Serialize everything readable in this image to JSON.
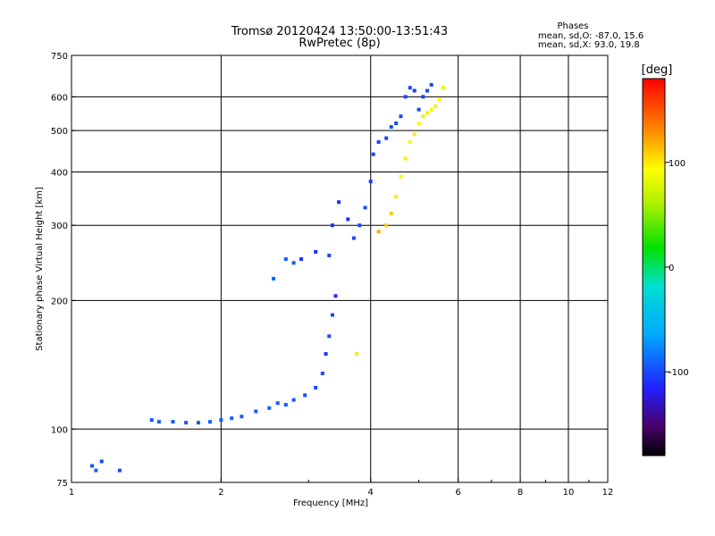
{
  "header": {
    "title_line1": "Tromsø 20120424 13:50:00-13:51:43",
    "title_line2": "RwPretec (8p)"
  },
  "phase_stats": {
    "heading": "Phases",
    "line_o": "mean, sd,O: -87.0, 15.6",
    "line_x": "mean, sd,X:  93.0, 19.8"
  },
  "chart_data": {
    "type": "scatter",
    "title": "Tromsø 20120424 13:50:00-13:51:43",
    "subtitle": "RwPretec (8p)",
    "xlabel": "Frequency [MHz]",
    "ylabel": "Stationary phase Virtual Height [km]",
    "x_scale": "log",
    "y_scale": "log",
    "xlim": [
      1,
      12
    ],
    "ylim": [
      75,
      750
    ],
    "x_ticks": [
      1,
      2,
      4,
      6,
      8,
      10,
      12
    ],
    "y_ticks": [
      75,
      100,
      200,
      300,
      400,
      500,
      600,
      750
    ],
    "grid_x": [
      2,
      4,
      6,
      8,
      10
    ],
    "grid_y": [
      100,
      200,
      300,
      400,
      500,
      600
    ],
    "grid": true,
    "colorbar": {
      "label": "[deg]",
      "range": [
        -180,
        180
      ],
      "ticks": [
        100,
        0,
        -100
      ],
      "colormap": "rainbow"
    },
    "series": [
      {
        "mode": "O",
        "mean_phase_deg": -87.0,
        "points": [
          [
            1.1,
            82,
            -95
          ],
          [
            1.12,
            80,
            -90
          ],
          [
            1.15,
            84,
            -100
          ],
          [
            1.25,
            80,
            -100
          ],
          [
            1.45,
            105,
            -95
          ],
          [
            1.5,
            104,
            -92
          ],
          [
            1.6,
            104,
            -95
          ],
          [
            1.7,
            103.5,
            -95
          ],
          [
            1.8,
            103.5,
            -95
          ],
          [
            1.9,
            104,
            -90
          ],
          [
            2.0,
            105,
            -92
          ],
          [
            2.1,
            106,
            -90
          ],
          [
            2.2,
            107,
            -95
          ],
          [
            2.35,
            110,
            -95
          ],
          [
            2.5,
            112,
            -90
          ],
          [
            2.6,
            115,
            -95
          ],
          [
            2.7,
            114,
            -92
          ],
          [
            2.8,
            117,
            -95
          ],
          [
            2.95,
            120,
            -100
          ],
          [
            3.1,
            125,
            -100
          ],
          [
            3.2,
            135,
            -100
          ],
          [
            3.25,
            150,
            -110
          ],
          [
            3.3,
            165,
            -100
          ],
          [
            3.35,
            185,
            -100
          ],
          [
            3.4,
            205,
            -110
          ],
          [
            2.55,
            225,
            -90
          ],
          [
            2.7,
            250,
            -90
          ],
          [
            2.8,
            245,
            -95
          ],
          [
            2.9,
            250,
            -110
          ],
          [
            3.1,
            260,
            -110
          ],
          [
            3.3,
            255,
            -100
          ],
          [
            3.35,
            300,
            -110
          ],
          [
            3.45,
            340,
            -110
          ],
          [
            3.6,
            310,
            -110
          ],
          [
            3.7,
            280,
            -100
          ],
          [
            3.8,
            300,
            -100
          ],
          [
            3.9,
            330,
            -100
          ],
          [
            4.0,
            380,
            -105
          ],
          [
            4.05,
            440,
            -100
          ],
          [
            4.15,
            470,
            -100
          ],
          [
            4.3,
            480,
            -100
          ],
          [
            4.4,
            510,
            -100
          ],
          [
            4.5,
            520,
            -100
          ],
          [
            4.6,
            540,
            -100
          ],
          [
            4.7,
            600,
            -100
          ],
          [
            4.8,
            630,
            -100
          ],
          [
            4.9,
            620,
            -105
          ],
          [
            5.0,
            560,
            -100
          ],
          [
            5.1,
            600,
            -105
          ],
          [
            5.2,
            620,
            -100
          ],
          [
            5.3,
            640,
            -100
          ]
        ]
      },
      {
        "mode": "X",
        "mean_phase_deg": 93.0,
        "points": [
          [
            3.75,
            150,
            100
          ],
          [
            4.15,
            290,
            120
          ],
          [
            4.3,
            300,
            110
          ],
          [
            4.4,
            320,
            110
          ],
          [
            4.5,
            350,
            100
          ],
          [
            4.6,
            390,
            90
          ],
          [
            4.7,
            430,
            100
          ],
          [
            4.8,
            470,
            90
          ],
          [
            4.9,
            490,
            100
          ],
          [
            5.0,
            520,
            90
          ],
          [
            5.1,
            540,
            80
          ],
          [
            5.2,
            550,
            100
          ],
          [
            5.3,
            560,
            90
          ],
          [
            5.4,
            570,
            100
          ],
          [
            5.5,
            590,
            90
          ],
          [
            5.6,
            630,
            80
          ]
        ]
      }
    ]
  }
}
